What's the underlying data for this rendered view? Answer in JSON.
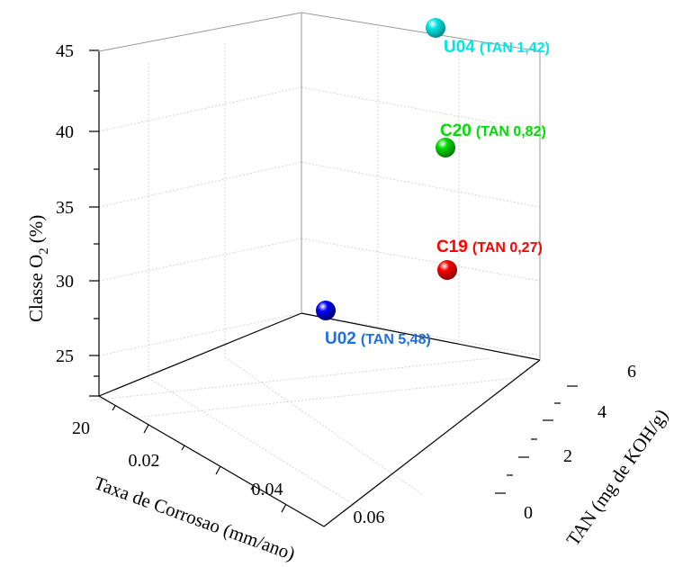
{
  "chart_data": {
    "type": "scatter",
    "subtype": "3d-scatter",
    "xlabel": "Taxa de Corrosao (mm/ano)",
    "ylabel": "TAN (mg de KOH/g)",
    "zlabel": {
      "main": "Classe O",
      "sub": "2",
      "unit": "(%)"
    },
    "x_ticks": [
      "0.02",
      "0.04",
      "0.06"
    ],
    "y_ticks": [
      "0",
      "2",
      "4",
      "6"
    ],
    "z_ticks": [
      "20",
      "25",
      "30",
      "35",
      "40",
      "45"
    ],
    "zlim": [
      20,
      45
    ],
    "grid": true,
    "points": [
      {
        "name": "U04",
        "tan_label": "(TAN 1,42)",
        "z": 45.8,
        "color": "#00e5e5"
      },
      {
        "name": "C20",
        "tan_label": "(TAN 0,82)",
        "z": 39.5,
        "color": "#00dd00"
      },
      {
        "name": "C19",
        "tan_label": "(TAN 0,27)",
        "z": 31.6,
        "color": "#ff0000"
      },
      {
        "name": "U02",
        "tan_label": "(TAN 5,48)",
        "z": 28.0,
        "color": "#0000ff",
        "label_color": "#1e6fe0"
      }
    ]
  }
}
